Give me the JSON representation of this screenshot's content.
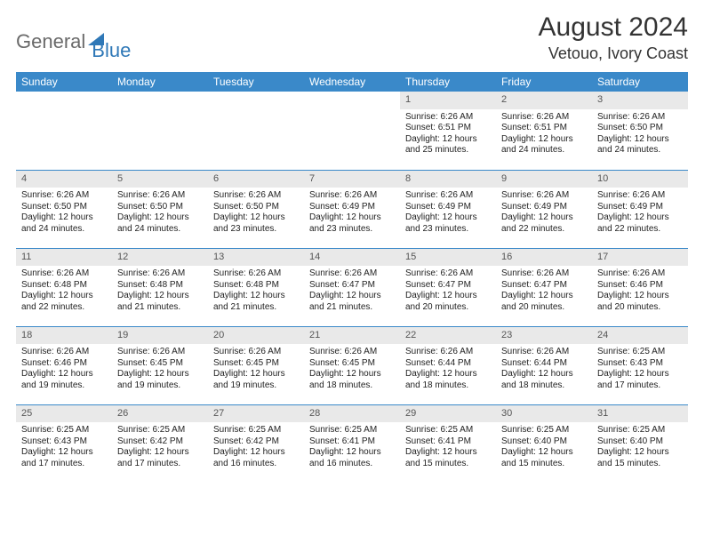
{
  "brand": {
    "part1": "General",
    "part2": "Blue"
  },
  "header": {
    "month": "August 2024",
    "location": "Vetouo, Ivory Coast"
  },
  "colors": {
    "header_bg": "#3a89c9",
    "header_text": "#ffffff",
    "daynum_bg": "#e9e9e9",
    "cell_border": "#3a89c9",
    "brand_gray": "#6a6a6a",
    "brand_blue": "#2f78b7"
  },
  "weekdays": [
    "Sunday",
    "Monday",
    "Tuesday",
    "Wednesday",
    "Thursday",
    "Friday",
    "Saturday"
  ],
  "calendar": {
    "first_weekday_index": 4,
    "days": [
      {
        "n": 1,
        "sunrise": "6:26 AM",
        "sunset": "6:51 PM",
        "daylight": "12 hours and 25 minutes."
      },
      {
        "n": 2,
        "sunrise": "6:26 AM",
        "sunset": "6:51 PM",
        "daylight": "12 hours and 24 minutes."
      },
      {
        "n": 3,
        "sunrise": "6:26 AM",
        "sunset": "6:50 PM",
        "daylight": "12 hours and 24 minutes."
      },
      {
        "n": 4,
        "sunrise": "6:26 AM",
        "sunset": "6:50 PM",
        "daylight": "12 hours and 24 minutes."
      },
      {
        "n": 5,
        "sunrise": "6:26 AM",
        "sunset": "6:50 PM",
        "daylight": "12 hours and 24 minutes."
      },
      {
        "n": 6,
        "sunrise": "6:26 AM",
        "sunset": "6:50 PM",
        "daylight": "12 hours and 23 minutes."
      },
      {
        "n": 7,
        "sunrise": "6:26 AM",
        "sunset": "6:49 PM",
        "daylight": "12 hours and 23 minutes."
      },
      {
        "n": 8,
        "sunrise": "6:26 AM",
        "sunset": "6:49 PM",
        "daylight": "12 hours and 23 minutes."
      },
      {
        "n": 9,
        "sunrise": "6:26 AM",
        "sunset": "6:49 PM",
        "daylight": "12 hours and 22 minutes."
      },
      {
        "n": 10,
        "sunrise": "6:26 AM",
        "sunset": "6:49 PM",
        "daylight": "12 hours and 22 minutes."
      },
      {
        "n": 11,
        "sunrise": "6:26 AM",
        "sunset": "6:48 PM",
        "daylight": "12 hours and 22 minutes."
      },
      {
        "n": 12,
        "sunrise": "6:26 AM",
        "sunset": "6:48 PM",
        "daylight": "12 hours and 21 minutes."
      },
      {
        "n": 13,
        "sunrise": "6:26 AM",
        "sunset": "6:48 PM",
        "daylight": "12 hours and 21 minutes."
      },
      {
        "n": 14,
        "sunrise": "6:26 AM",
        "sunset": "6:47 PM",
        "daylight": "12 hours and 21 minutes."
      },
      {
        "n": 15,
        "sunrise": "6:26 AM",
        "sunset": "6:47 PM",
        "daylight": "12 hours and 20 minutes."
      },
      {
        "n": 16,
        "sunrise": "6:26 AM",
        "sunset": "6:47 PM",
        "daylight": "12 hours and 20 minutes."
      },
      {
        "n": 17,
        "sunrise": "6:26 AM",
        "sunset": "6:46 PM",
        "daylight": "12 hours and 20 minutes."
      },
      {
        "n": 18,
        "sunrise": "6:26 AM",
        "sunset": "6:46 PM",
        "daylight": "12 hours and 19 minutes."
      },
      {
        "n": 19,
        "sunrise": "6:26 AM",
        "sunset": "6:45 PM",
        "daylight": "12 hours and 19 minutes."
      },
      {
        "n": 20,
        "sunrise": "6:26 AM",
        "sunset": "6:45 PM",
        "daylight": "12 hours and 19 minutes."
      },
      {
        "n": 21,
        "sunrise": "6:26 AM",
        "sunset": "6:45 PM",
        "daylight": "12 hours and 18 minutes."
      },
      {
        "n": 22,
        "sunrise": "6:26 AM",
        "sunset": "6:44 PM",
        "daylight": "12 hours and 18 minutes."
      },
      {
        "n": 23,
        "sunrise": "6:26 AM",
        "sunset": "6:44 PM",
        "daylight": "12 hours and 18 minutes."
      },
      {
        "n": 24,
        "sunrise": "6:25 AM",
        "sunset": "6:43 PM",
        "daylight": "12 hours and 17 minutes."
      },
      {
        "n": 25,
        "sunrise": "6:25 AM",
        "sunset": "6:43 PM",
        "daylight": "12 hours and 17 minutes."
      },
      {
        "n": 26,
        "sunrise": "6:25 AM",
        "sunset": "6:42 PM",
        "daylight": "12 hours and 17 minutes."
      },
      {
        "n": 27,
        "sunrise": "6:25 AM",
        "sunset": "6:42 PM",
        "daylight": "12 hours and 16 minutes."
      },
      {
        "n": 28,
        "sunrise": "6:25 AM",
        "sunset": "6:41 PM",
        "daylight": "12 hours and 16 minutes."
      },
      {
        "n": 29,
        "sunrise": "6:25 AM",
        "sunset": "6:41 PM",
        "daylight": "12 hours and 15 minutes."
      },
      {
        "n": 30,
        "sunrise": "6:25 AM",
        "sunset": "6:40 PM",
        "daylight": "12 hours and 15 minutes."
      },
      {
        "n": 31,
        "sunrise": "6:25 AM",
        "sunset": "6:40 PM",
        "daylight": "12 hours and 15 minutes."
      }
    ]
  },
  "labels": {
    "sunrise": "Sunrise:",
    "sunset": "Sunset:",
    "daylight": "Daylight:"
  }
}
